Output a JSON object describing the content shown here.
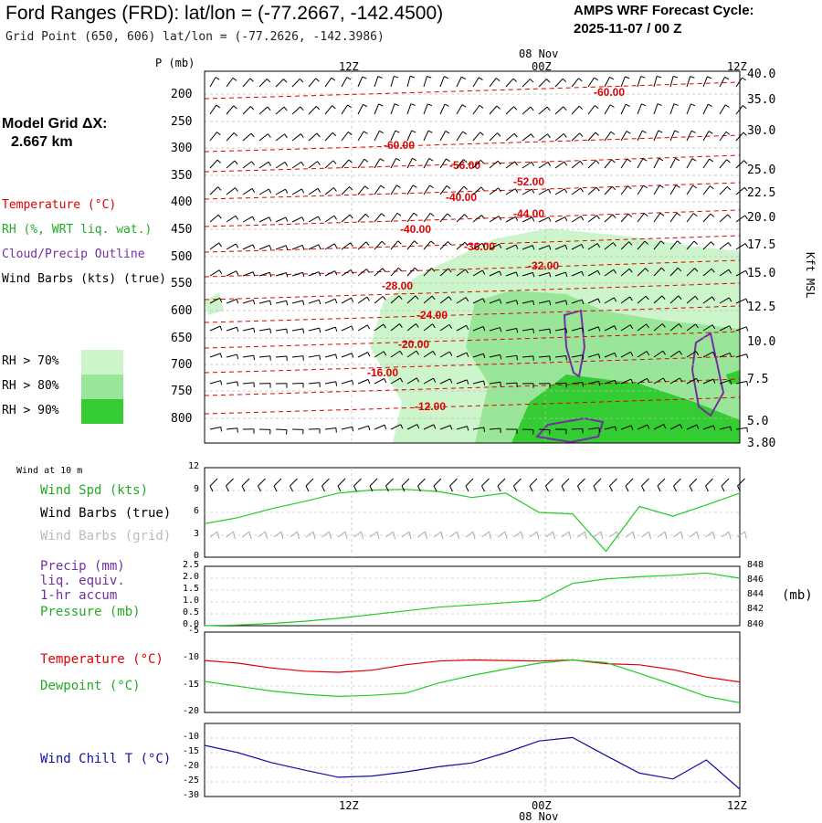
{
  "header": {
    "title": "Ford Ranges (FRD):  lat/lon = (-77.2667, -142.4500)",
    "subtitle": "Grid Point (650, 606) lat/lon = (-77.2626, -142.3986)",
    "cycle_line1": "AMPS WRF Forecast Cycle:",
    "cycle_line2": "2025-11-07 / 00  Z"
  },
  "left_panel": {
    "grid_label": "Model Grid ΔX:",
    "grid_value": "2.667 km",
    "temperature": "Temperature (°C)",
    "rh": "RH (%, WRT liq. wat.)",
    "cloud": "Cloud/Precip Outline",
    "barbs": "Wind Barbs (kts) (true)",
    "rh70": "RH > 70%",
    "rh80": "RH > 80%",
    "rh90": "RH > 90%"
  },
  "colors": {
    "rh70": "#ccf5cc",
    "rh80": "#99e699",
    "rh90": "#33cc33",
    "temp": "#e00000",
    "cloud": "#7030a0",
    "green": "#22cc22",
    "blue": "#1010a0",
    "gray": "#aaaaaa"
  },
  "time_axis": {
    "top_date": "08 Nov",
    "bottom_date": "08 Nov",
    "ticks": [
      "12Z",
      "00Z",
      "12Z"
    ]
  },
  "chart_data": [
    {
      "type": "heatmap",
      "title": "",
      "ylabel_left": "P (mb)",
      "ylabel_right": "Kft MSL",
      "pressure_ticks": [
        "200",
        "250",
        "300",
        "350",
        "400",
        "450",
        "500",
        "550",
        "600",
        "650",
        "700",
        "750",
        "800"
      ],
      "height_ticks": [
        "40.0",
        "35.0",
        "30.0",
        "25.0",
        "22.5",
        "20.0",
        "17.5",
        "15.0",
        "12.5",
        "10.0",
        "7.5",
        "5.0",
        "3.80"
      ],
      "isotherm_labels": [
        "-60.00",
        "-60.00",
        "-56.00",
        "-52.00",
        "-40.00",
        "-44.00",
        "-40.00",
        "-36.00",
        "-32.00",
        "-28.00",
        "-24.00",
        "-20.00",
        "-16.00",
        "-12.00"
      ]
    },
    {
      "type": "line",
      "panel": "Wind at 10 m",
      "yticks": [
        "12",
        "9",
        "6",
        "3",
        "0"
      ],
      "ylim": [
        0,
        12
      ],
      "labels": {
        "wind_spd": "Wind Spd (kts)",
        "barbs_true": "Wind Barbs (true)",
        "barbs_grid": "Wind Barbs (grid)"
      },
      "x": [
        0,
        3,
        6,
        9,
        12,
        15,
        18,
        21,
        24,
        27,
        30,
        33,
        36,
        39,
        42,
        45,
        48
      ],
      "series": [
        {
          "name": "Wind Spd (kts)",
          "values": [
            4.5,
            5.3,
            6.5,
            7.5,
            8.6,
            9.0,
            9.1,
            8.8,
            8.0,
            8.6,
            6.0,
            5.8,
            0.8,
            6.8,
            5.5,
            7.0,
            8.6
          ]
        }
      ]
    },
    {
      "type": "line",
      "panel": "Precip / Pressure",
      "yticks_left": [
        "2.5",
        "2.0",
        "1.5",
        "1.0",
        "0.5",
        "0.0"
      ],
      "yticks_right": [
        "848",
        "846",
        "844",
        "842",
        "840"
      ],
      "yunit_right": "(mb)",
      "labels": {
        "precip": "Precip (mm)",
        "precip2": "liq. equiv.",
        "precip3": "1-hr accum",
        "pressure": "Pressure (mb)"
      },
      "x": [
        0,
        3,
        6,
        9,
        12,
        15,
        18,
        21,
        24,
        27,
        30,
        33,
        36,
        39,
        42,
        45,
        48
      ],
      "series": [
        {
          "name": "Pressure (mb)",
          "values": [
            840.0,
            840.1,
            840.3,
            840.6,
            841.0,
            841.5,
            842.0,
            842.5,
            842.8,
            843.1,
            843.4,
            845.7,
            846.3,
            846.6,
            846.8,
            847.1,
            846.4
          ]
        }
      ]
    },
    {
      "type": "line",
      "panel": "Temperature / Dewpoint",
      "yticks": [
        "-5",
        "-10",
        "-15",
        "-20"
      ],
      "ylim": [
        -20,
        -5
      ],
      "labels": {
        "temperature": "Temperature (°C)",
        "dewpoint": "Dewpoint (°C)"
      },
      "x": [
        0,
        3,
        6,
        9,
        12,
        15,
        18,
        21,
        24,
        27,
        30,
        33,
        36,
        39,
        42,
        45,
        48
      ],
      "series": [
        {
          "name": "Temperature (°C)",
          "values": [
            -10.3,
            -10.8,
            -11.7,
            -12.3,
            -12.5,
            -12.1,
            -11.1,
            -10.4,
            -10.2,
            -10.3,
            -10.4,
            -10.2,
            -10.9,
            -11.1,
            -12.0,
            -13.4,
            -14.3
          ]
        },
        {
          "name": "Dewpoint (°C)",
          "values": [
            -14.2,
            -15.1,
            -16.0,
            -16.6,
            -17.0,
            -16.8,
            -16.4,
            -14.5,
            -13.1,
            -11.9,
            -10.8,
            -10.2,
            -10.7,
            -12.7,
            -14.8,
            -17.0,
            -18.2
          ]
        }
      ]
    },
    {
      "type": "line",
      "panel": "Wind Chill",
      "yticks": [
        "-10",
        "-15",
        "-20",
        "-25",
        "-30"
      ],
      "ylim": [
        -30,
        -5
      ],
      "labels": {
        "windchill": "Wind Chill T (°C)"
      },
      "x": [
        0,
        3,
        6,
        9,
        12,
        15,
        18,
        21,
        24,
        27,
        30,
        33,
        36,
        39,
        42,
        45,
        48
      ],
      "series": [
        {
          "name": "Wind Chill T (°C)",
          "values": [
            -12.5,
            -15.0,
            -18.4,
            -21.0,
            -23.4,
            -23.0,
            -21.6,
            -19.8,
            -18.5,
            -15.0,
            -11.0,
            -9.8,
            -16.0,
            -22.0,
            -24.0,
            -17.5,
            -27.5
          ]
        }
      ]
    }
  ]
}
